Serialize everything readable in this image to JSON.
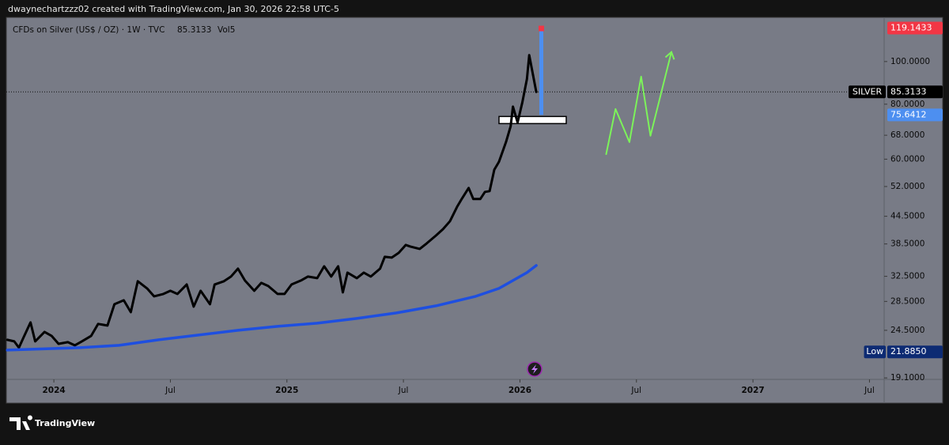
{
  "header": {
    "text": "dwaynechartzzz02 created with TradingView.com, Jan 30, 2026 22:58 UTC-5"
  },
  "footer": {
    "brand": "TradingView"
  },
  "chart_data": {
    "type": "line",
    "legend_text": "CFDs on Silver (US$ / OZ) · 1W · TVC",
    "legend_price": 85.3133,
    "legend_volume": "Vol5",
    "log_scale": true,
    "background": "#787b86",
    "ylim": [
      18.95,
      126
    ],
    "yticks": [
      {
        "value": 100,
        "label": "100.0000"
      },
      {
        "value": 80,
        "label": "80.0000"
      },
      {
        "value": 68,
        "label": "68.0000"
      },
      {
        "value": 60,
        "label": "60.0000"
      },
      {
        "value": 52,
        "label": "52.0000"
      },
      {
        "value": 44.5,
        "label": "44.5000"
      },
      {
        "value": 38.5,
        "label": "38.5000"
      },
      {
        "value": 32.5,
        "label": "32.5000"
      },
      {
        "value": 28.5,
        "label": "28.5000"
      },
      {
        "value": 24.5,
        "label": "24.5000"
      },
      {
        "value": 19.1,
        "label": "19.1000"
      }
    ],
    "xlim": [
      2023.796,
      2027.563
    ],
    "xticks": [
      2024,
      {
        "value": 2024.5,
        "label": "Jul"
      },
      2025,
      {
        "value": 2025.5,
        "label": "Jul"
      },
      2026,
      {
        "value": 2026.5,
        "label": "Jul"
      },
      2027,
      {
        "value": 2027.5,
        "label": "Jul"
      }
    ],
    "series": [
      {
        "color": "#000000",
        "width": 3,
        "x": [
          2023.8,
          2023.83,
          2023.85,
          2023.87,
          2023.9,
          2023.92,
          2023.96,
          2023.99,
          2024.02,
          2024.06,
          2024.09,
          2024.12,
          2024.16,
          2024.19,
          2024.23,
          2024.26,
          2024.3,
          2024.33,
          2024.36,
          2024.4,
          2024.43,
          2024.47,
          2024.5,
          2024.53,
          2024.57,
          2024.6,
          2024.63,
          2024.67,
          2024.69,
          2024.73,
          2024.76,
          2024.79,
          2024.82,
          2024.86,
          2024.89,
          2024.92,
          2024.96,
          2024.99,
          2025.02,
          2025.06,
          2025.09,
          2025.13,
          2025.16,
          2025.19,
          2025.22,
          2025.24,
          2025.26,
          2025.3,
          2025.33,
          2025.36,
          2025.4,
          2025.42,
          2025.45,
          2025.48,
          2025.51,
          2025.53,
          2025.57,
          2025.6,
          2025.64,
          2025.67,
          2025.7,
          2025.73,
          2025.75,
          2025.78,
          2025.8,
          2025.83,
          2025.85,
          2025.87,
          2025.89,
          2025.91,
          2025.94,
          2025.96,
          2025.97,
          2025.99,
          2026.01,
          2026.03,
          2026.04,
          2026.07
        ],
        "values": [
          23.31,
          23.12,
          22.37,
          23.6,
          25.54,
          23.12,
          24.3,
          23.8,
          22.83,
          23.03,
          22.65,
          23.12,
          23.8,
          25.33,
          25.12,
          28.08,
          28.67,
          26.95,
          31.67,
          30.51,
          29.27,
          29.63,
          30.13,
          29.63,
          31.14,
          27.74,
          30.13,
          28.08,
          31.14,
          31.67,
          32.46,
          33.83,
          31.8,
          30.13,
          31.4,
          30.89,
          29.63,
          29.63,
          31.14,
          31.8,
          32.46,
          32.19,
          34.25,
          32.46,
          34.25,
          29.88,
          33.13,
          32.19,
          33.13,
          32.46,
          33.83,
          35.99,
          35.84,
          36.74,
          38.3,
          37.98,
          37.51,
          38.62,
          40.25,
          41.61,
          43.37,
          46.72,
          48.7,
          51.6,
          48.7,
          48.7,
          50.54,
          50.75,
          56.75,
          59.15,
          65.59,
          71.25,
          79.0,
          72.73,
          80.65,
          91.3,
          103.4,
          85.31
        ]
      },
      {
        "color": "#1e4fe0",
        "width": 3.5,
        "x": [
          2023.8,
          2024.11,
          2024.28,
          2024.45,
          2024.62,
          2024.79,
          2024.96,
          2025.13,
          2025.3,
          2025.47,
          2025.64,
          2025.81,
          2025.91,
          2025.97,
          2026.03,
          2026.07
        ],
        "values": [
          22.09,
          22.37,
          22.65,
          23.31,
          23.9,
          24.5,
          25.01,
          25.43,
          26.07,
          26.83,
          27.85,
          29.27,
          30.51,
          31.8,
          33.13,
          34.4
        ]
      },
      {
        "color": "#7cf35a",
        "width": 2,
        "arrow": true,
        "x": [
          2026.37,
          2026.41,
          2026.47,
          2026.52,
          2026.56,
          2026.65
        ],
        "values": [
          61.6,
          78.0,
          65.59,
          92.44,
          67.8,
          105.1
        ]
      }
    ],
    "price_tags": [
      {
        "label": "SILVER",
        "value": 85.3133,
        "color": "#000000",
        "dotted_line": true
      },
      {
        "value": 119.1433,
        "color": "#f23645"
      },
      {
        "value": 75.6412,
        "color": "#4d8ff0"
      },
      {
        "label": "Low",
        "value": 21.885,
        "value_label": "21.8850",
        "color": "#0d2b73"
      }
    ]
  }
}
